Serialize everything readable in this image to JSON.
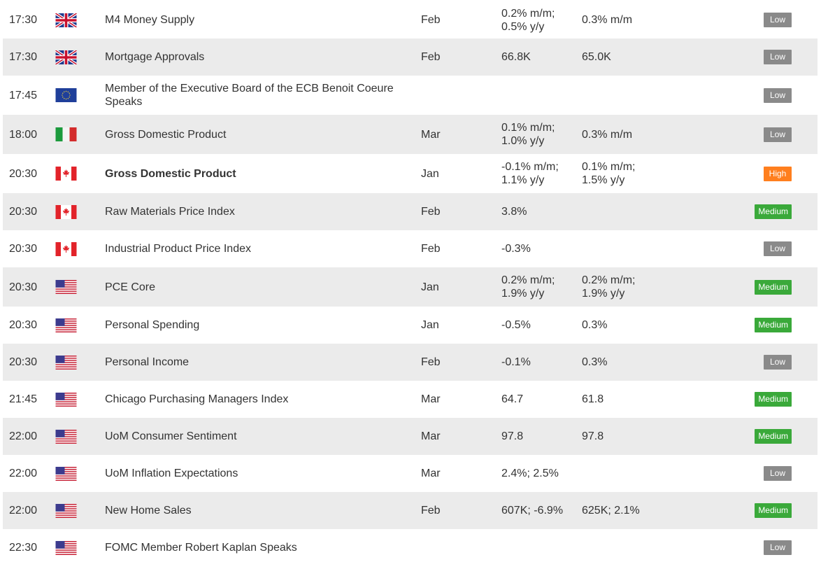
{
  "colors": {
    "row_alt": "#ebebeb",
    "text": "#333333",
    "importance": {
      "Low": "#8a8a8a",
      "Medium": "#3aa93a",
      "High": "#ff7f1e"
    }
  },
  "events": [
    {
      "time": "17:30",
      "country": "uk-flag-icon",
      "event": "M4 Money Supply",
      "bold": false,
      "period": "Feb",
      "actual": "0.2% m/m;\n0.5% y/y",
      "forecast": "0.3% m/m",
      "importance": "Low"
    },
    {
      "time": "17:30",
      "country": "uk-flag-icon",
      "event": "Mortgage Approvals",
      "bold": false,
      "period": "Feb",
      "actual": "66.8K",
      "forecast": "65.0K",
      "importance": "Low"
    },
    {
      "time": "17:45",
      "country": "eu-flag-icon",
      "event": "Member of the Executive Board of the ECB Benoit Coeure Speaks",
      "bold": false,
      "period": "",
      "actual": "",
      "forecast": "",
      "importance": "Low"
    },
    {
      "time": "18:00",
      "country": "italy-flag-icon",
      "event": "Gross Domestic Product",
      "bold": false,
      "period": "Mar",
      "actual": "0.1% m/m;\n1.0% y/y",
      "forecast": "0.3% m/m",
      "importance": "Low"
    },
    {
      "time": "20:30",
      "country": "canada-flag-icon",
      "event": "Gross Domestic Product",
      "bold": true,
      "period": "Jan",
      "actual": "-0.1% m/m;\n1.1% y/y",
      "forecast": "0.1% m/m;\n1.5% y/y",
      "importance": "High"
    },
    {
      "time": "20:30",
      "country": "canada-flag-icon",
      "event": "Raw Materials Price Index",
      "bold": false,
      "period": "Feb",
      "actual": "3.8%",
      "forecast": "",
      "importance": "Medium"
    },
    {
      "time": "20:30",
      "country": "canada-flag-icon",
      "event": "Industrial Product Price Index",
      "bold": false,
      "period": "Feb",
      "actual": "-0.3%",
      "forecast": "",
      "importance": "Low"
    },
    {
      "time": "20:30",
      "country": "usa-flag-icon",
      "event": "PCE Core",
      "bold": false,
      "period": "Jan",
      "actual": "0.2% m/m;\n1.9% y/y",
      "forecast": "0.2% m/m;\n1.9% y/y",
      "importance": "Medium"
    },
    {
      "time": "20:30",
      "country": "usa-flag-icon",
      "event": "Personal Spending",
      "bold": false,
      "period": "Jan",
      "actual": "-0.5%",
      "forecast": "0.3%",
      "importance": "Medium"
    },
    {
      "time": "20:30",
      "country": "usa-flag-icon",
      "event": "Personal Income",
      "bold": false,
      "period": "Feb",
      "actual": "-0.1%",
      "forecast": "0.3%",
      "importance": "Low"
    },
    {
      "time": "21:45",
      "country": "usa-flag-icon",
      "event": "Chicago Purchasing Managers Index",
      "bold": false,
      "period": "Mar",
      "actual": "64.7",
      "forecast": "61.8",
      "importance": "Medium"
    },
    {
      "time": "22:00",
      "country": "usa-flag-icon",
      "event": "UoM Consumer Sentiment",
      "bold": false,
      "period": "Mar",
      "actual": "97.8",
      "forecast": "97.8",
      "importance": "Medium"
    },
    {
      "time": "22:00",
      "country": "usa-flag-icon",
      "event": "UoM Inflation Expectations",
      "bold": false,
      "period": "Mar",
      "actual": "2.4%; 2.5%",
      "forecast": "",
      "importance": "Low"
    },
    {
      "time": "22:00",
      "country": "usa-flag-icon",
      "event": "New Home Sales",
      "bold": false,
      "period": "Feb",
      "actual": "607K; -6.9%",
      "forecast": "625K; 2.1%",
      "importance": "Medium"
    },
    {
      "time": "22:30",
      "country": "usa-flag-icon",
      "event": "FOMC Member Robert Kaplan Speaks",
      "bold": false,
      "period": "",
      "actual": "",
      "forecast": "",
      "importance": "Low"
    }
  ]
}
